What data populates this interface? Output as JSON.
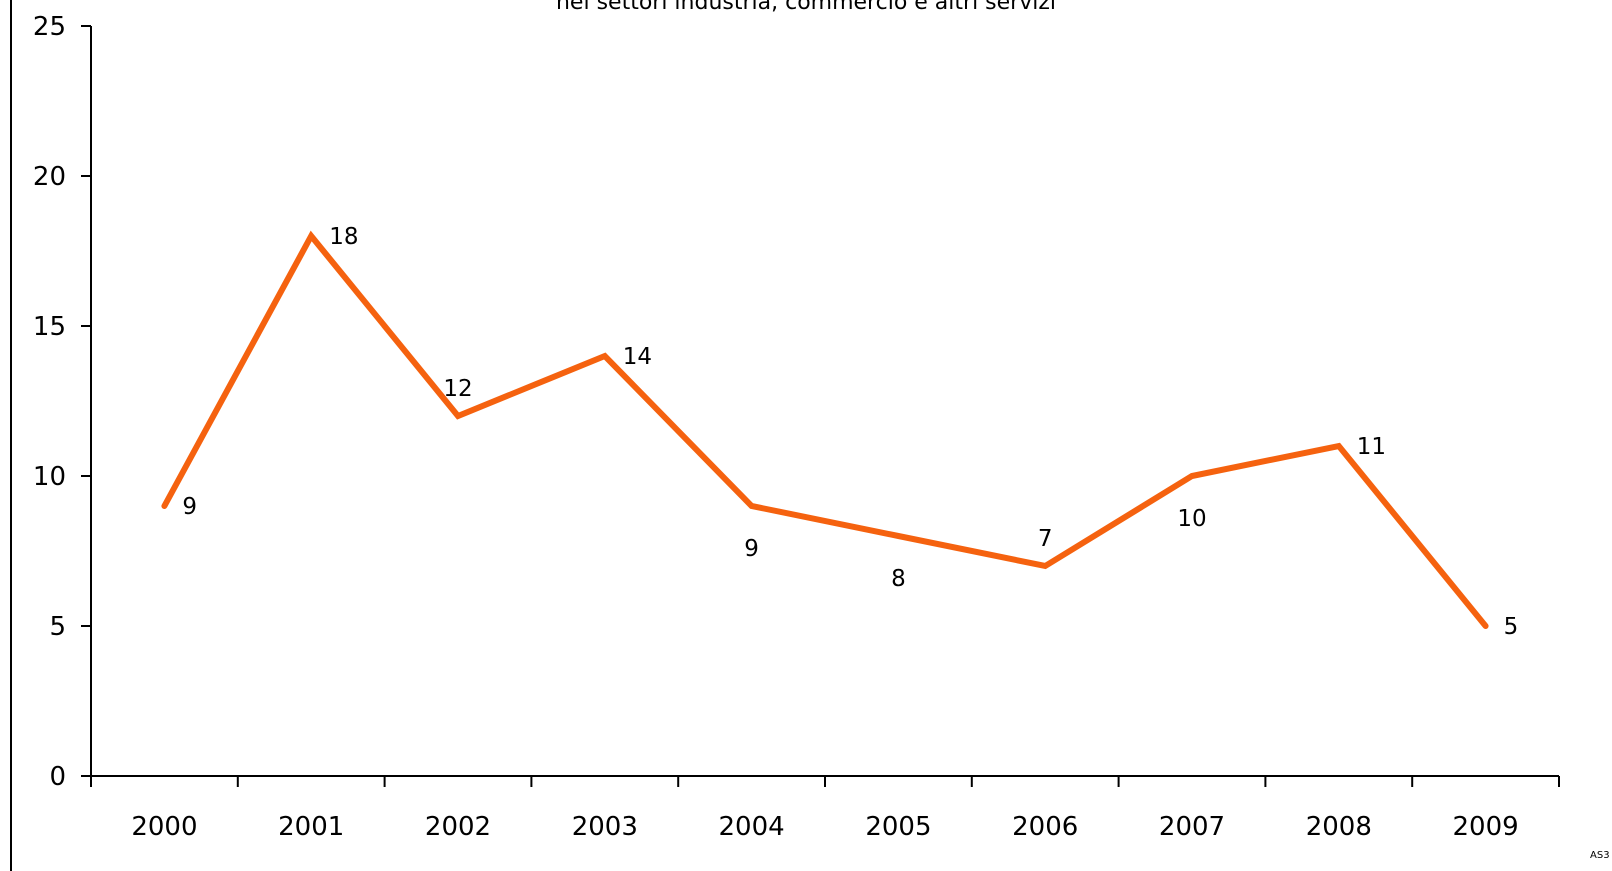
{
  "chart_data": {
    "type": "line",
    "title": "nei settori industria, commercio e altri servizi",
    "categories": [
      "2000",
      "2001",
      "2002",
      "2003",
      "2004",
      "2005",
      "2006",
      "2007",
      "2008",
      "2009"
    ],
    "series": [
      {
        "values": [
          9,
          18,
          12,
          14,
          9,
          8,
          7,
          10,
          11,
          5
        ]
      }
    ],
    "data_labels": [
      "9",
      "18",
      "12",
      "14",
      "9",
      "8",
      "7",
      "10",
      "11",
      "5"
    ],
    "yticks": [
      "0",
      "5",
      "10",
      "15",
      "20",
      "25"
    ],
    "ylim": [
      0,
      25
    ],
    "xlabel": "",
    "ylabel": "",
    "grid": false,
    "legend": "none",
    "colors": {
      "line": "#f5620f",
      "axis": "#000000",
      "text": "#000000"
    }
  },
  "footer": {
    "source_code": "AS3"
  }
}
